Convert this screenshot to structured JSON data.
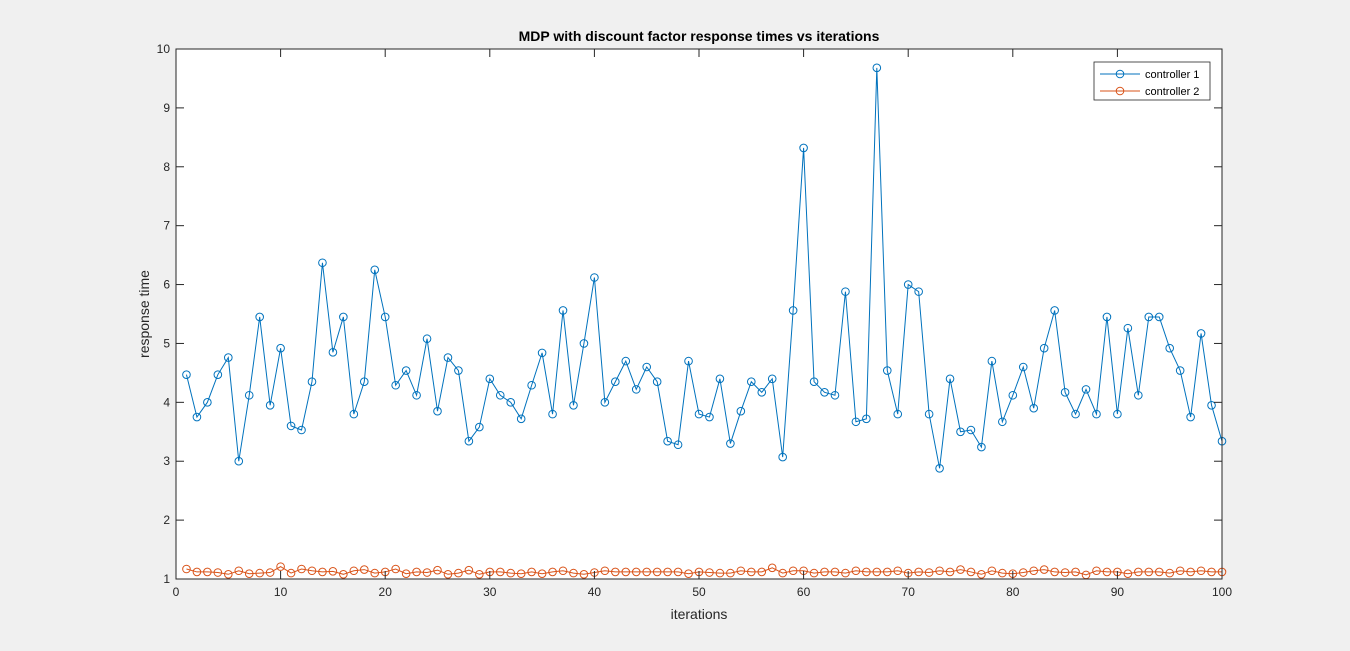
{
  "chart_data": {
    "type": "line",
    "title": "MDP with discount factor response times vs iterations",
    "xlabel": "iterations",
    "ylabel": "response time",
    "xlim": [
      0,
      100
    ],
    "ylim": [
      1,
      10
    ],
    "xticks": [
      0,
      10,
      20,
      30,
      40,
      50,
      60,
      70,
      80,
      90,
      100
    ],
    "yticks": [
      1,
      2,
      3,
      4,
      5,
      6,
      7,
      8,
      9,
      10
    ],
    "grid": false,
    "legend_position": "top-right",
    "markers": "circle",
    "series": [
      {
        "name": "controller 1",
        "color": "#0072BD",
        "x": [
          1,
          2,
          3,
          4,
          5,
          6,
          7,
          8,
          9,
          10,
          11,
          12,
          13,
          14,
          15,
          16,
          17,
          18,
          19,
          20,
          21,
          22,
          23,
          24,
          25,
          26,
          27,
          28,
          29,
          30,
          31,
          32,
          33,
          34,
          35,
          36,
          37,
          38,
          39,
          40,
          41,
          42,
          43,
          44,
          45,
          46,
          47,
          48,
          49,
          50,
          51,
          52,
          53,
          54,
          55,
          56,
          57,
          58,
          59,
          60,
          61,
          62,
          63,
          64,
          65,
          66,
          67,
          68,
          69,
          70,
          71,
          72,
          73,
          74,
          75,
          76,
          77,
          78,
          79,
          80,
          81,
          82,
          83,
          84,
          85,
          86,
          87,
          88,
          89,
          90,
          91,
          92,
          93,
          94,
          95,
          96,
          97,
          98,
          99,
          100
        ],
        "values": [
          4.47,
          3.75,
          4.0,
          4.47,
          4.76,
          3.0,
          4.12,
          5.45,
          3.95,
          4.92,
          3.6,
          3.53,
          4.35,
          6.37,
          4.85,
          5.45,
          3.8,
          4.35,
          6.25,
          5.45,
          4.29,
          4.54,
          4.12,
          5.08,
          3.85,
          4.76,
          4.54,
          3.34,
          3.58,
          4.4,
          4.12,
          4.0,
          3.72,
          4.29,
          4.84,
          3.8,
          5.56,
          3.95,
          5.0,
          6.12,
          4.0,
          4.35,
          4.7,
          4.22,
          4.6,
          4.35,
          3.34,
          3.28,
          4.7,
          3.8,
          3.75,
          4.4,
          3.3,
          3.85,
          4.35,
          4.17,
          4.4,
          3.07,
          5.56,
          8.32,
          4.35,
          4.17,
          4.12,
          5.88,
          3.67,
          3.72,
          9.68,
          4.54,
          3.8,
          6.0,
          5.88,
          3.8,
          2.88,
          4.4,
          3.5,
          3.53,
          3.24,
          4.7,
          3.67,
          4.12,
          4.6,
          3.9,
          4.92,
          5.56,
          4.17,
          3.8,
          4.22,
          3.8,
          5.45,
          3.8,
          5.26,
          4.12,
          5.45,
          5.45,
          4.92,
          4.54,
          3.75,
          5.17,
          3.95,
          3.34
        ]
      },
      {
        "name": "controller 2",
        "color": "#D95319",
        "x": [
          1,
          2,
          3,
          4,
          5,
          6,
          7,
          8,
          9,
          10,
          11,
          12,
          13,
          14,
          15,
          16,
          17,
          18,
          19,
          20,
          21,
          22,
          23,
          24,
          25,
          26,
          27,
          28,
          29,
          30,
          31,
          32,
          33,
          34,
          35,
          36,
          37,
          38,
          39,
          40,
          41,
          42,
          43,
          44,
          45,
          46,
          47,
          48,
          49,
          50,
          51,
          52,
          53,
          54,
          55,
          56,
          57,
          58,
          59,
          60,
          61,
          62,
          63,
          64,
          65,
          66,
          67,
          68,
          69,
          70,
          71,
          72,
          73,
          74,
          75,
          76,
          77,
          78,
          79,
          80,
          81,
          82,
          83,
          84,
          85,
          86,
          87,
          88,
          89,
          90,
          91,
          92,
          93,
          94,
          95,
          96,
          97,
          98,
          99,
          100
        ],
        "values": [
          1.17,
          1.12,
          1.12,
          1.11,
          1.08,
          1.14,
          1.09,
          1.1,
          1.11,
          1.21,
          1.1,
          1.17,
          1.14,
          1.12,
          1.13,
          1.08,
          1.14,
          1.16,
          1.1,
          1.12,
          1.17,
          1.09,
          1.12,
          1.11,
          1.15,
          1.08,
          1.1,
          1.15,
          1.08,
          1.12,
          1.12,
          1.1,
          1.09,
          1.12,
          1.09,
          1.12,
          1.14,
          1.1,
          1.08,
          1.11,
          1.14,
          1.12,
          1.12,
          1.12,
          1.12,
          1.12,
          1.12,
          1.12,
          1.09,
          1.12,
          1.11,
          1.1,
          1.1,
          1.14,
          1.12,
          1.12,
          1.19,
          1.1,
          1.14,
          1.14,
          1.1,
          1.12,
          1.12,
          1.1,
          1.14,
          1.12,
          1.12,
          1.12,
          1.14,
          1.1,
          1.12,
          1.11,
          1.14,
          1.12,
          1.16,
          1.12,
          1.08,
          1.14,
          1.1,
          1.09,
          1.11,
          1.14,
          1.16,
          1.12,
          1.11,
          1.12,
          1.07,
          1.14,
          1.12,
          1.12,
          1.09,
          1.12,
          1.12,
          1.12,
          1.1,
          1.14,
          1.12,
          1.14,
          1.12,
          1.12
        ]
      }
    ]
  }
}
